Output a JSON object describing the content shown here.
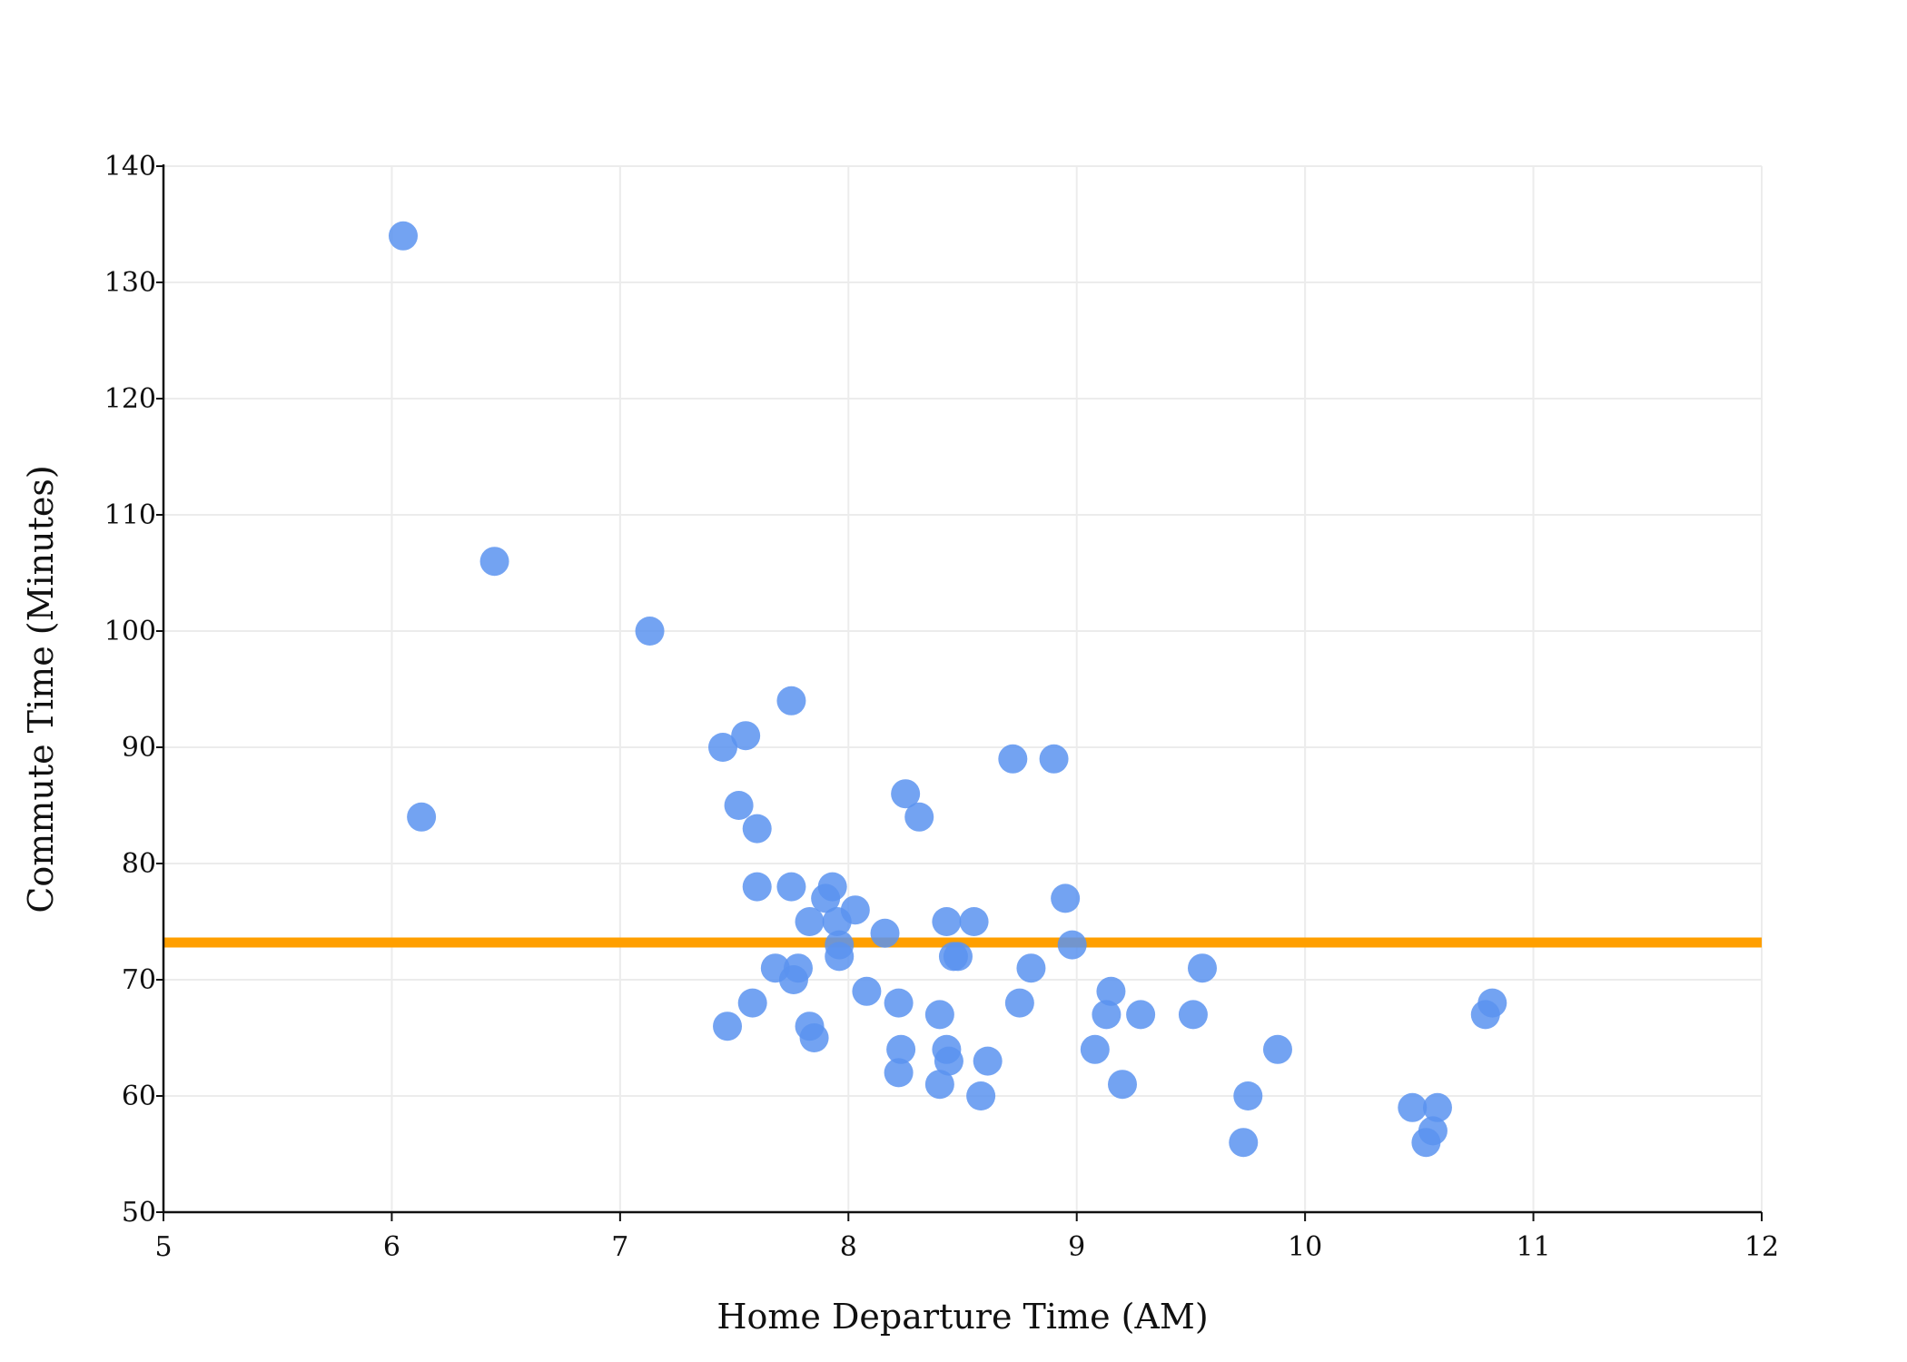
{
  "chart_data": {
    "type": "scatter",
    "title": "",
    "xlabel": "Home Departure Time (AM)",
    "ylabel": "Commute Time (Minutes)",
    "xlim": [
      5,
      12
    ],
    "ylim": [
      50,
      140
    ],
    "xticks": [
      "5",
      "6",
      "7",
      "8",
      "9",
      "10",
      "11",
      "12"
    ],
    "yticks": [
      "50",
      "60",
      "70",
      "80",
      "90",
      "100",
      "110",
      "120",
      "130",
      "140"
    ],
    "grid": true,
    "point_color": "#5b93f0",
    "reference_line": {
      "orientation": "horizontal",
      "y": 73.2,
      "color": "#ff9f00"
    },
    "points": [
      {
        "x": 6.05,
        "y": 134
      },
      {
        "x": 6.13,
        "y": 84
      },
      {
        "x": 6.45,
        "y": 106
      },
      {
        "x": 7.13,
        "y": 100
      },
      {
        "x": 7.45,
        "y": 90
      },
      {
        "x": 7.47,
        "y": 66
      },
      {
        "x": 7.52,
        "y": 85
      },
      {
        "x": 7.55,
        "y": 91
      },
      {
        "x": 7.58,
        "y": 68
      },
      {
        "x": 7.6,
        "y": 78
      },
      {
        "x": 7.6,
        "y": 83
      },
      {
        "x": 7.68,
        "y": 71
      },
      {
        "x": 7.75,
        "y": 94
      },
      {
        "x": 7.75,
        "y": 78
      },
      {
        "x": 7.76,
        "y": 70
      },
      {
        "x": 7.78,
        "y": 71
      },
      {
        "x": 7.83,
        "y": 66
      },
      {
        "x": 7.83,
        "y": 75
      },
      {
        "x": 7.85,
        "y": 65
      },
      {
        "x": 7.9,
        "y": 77
      },
      {
        "x": 7.93,
        "y": 78
      },
      {
        "x": 7.95,
        "y": 75
      },
      {
        "x": 7.96,
        "y": 73
      },
      {
        "x": 7.96,
        "y": 72
      },
      {
        "x": 8.03,
        "y": 76
      },
      {
        "x": 8.08,
        "y": 69
      },
      {
        "x": 8.16,
        "y": 74
      },
      {
        "x": 8.22,
        "y": 68
      },
      {
        "x": 8.22,
        "y": 62
      },
      {
        "x": 8.23,
        "y": 64
      },
      {
        "x": 8.25,
        "y": 86
      },
      {
        "x": 8.31,
        "y": 84
      },
      {
        "x": 8.4,
        "y": 67
      },
      {
        "x": 8.4,
        "y": 61
      },
      {
        "x": 8.43,
        "y": 75
      },
      {
        "x": 8.43,
        "y": 64
      },
      {
        "x": 8.44,
        "y": 63
      },
      {
        "x": 8.46,
        "y": 72
      },
      {
        "x": 8.48,
        "y": 72
      },
      {
        "x": 8.55,
        "y": 75
      },
      {
        "x": 8.58,
        "y": 60
      },
      {
        "x": 8.61,
        "y": 63
      },
      {
        "x": 8.72,
        "y": 89
      },
      {
        "x": 8.75,
        "y": 68
      },
      {
        "x": 8.8,
        "y": 71
      },
      {
        "x": 8.9,
        "y": 89
      },
      {
        "x": 8.95,
        "y": 77
      },
      {
        "x": 8.98,
        "y": 73
      },
      {
        "x": 9.08,
        "y": 64
      },
      {
        "x": 9.13,
        "y": 67
      },
      {
        "x": 9.15,
        "y": 69
      },
      {
        "x": 9.2,
        "y": 61
      },
      {
        "x": 9.28,
        "y": 67
      },
      {
        "x": 9.51,
        "y": 67
      },
      {
        "x": 9.55,
        "y": 71
      },
      {
        "x": 9.73,
        "y": 56
      },
      {
        "x": 9.75,
        "y": 60
      },
      {
        "x": 9.88,
        "y": 64
      },
      {
        "x": 10.47,
        "y": 59
      },
      {
        "x": 10.53,
        "y": 56
      },
      {
        "x": 10.56,
        "y": 57
      },
      {
        "x": 10.58,
        "y": 59
      },
      {
        "x": 10.79,
        "y": 67
      },
      {
        "x": 10.82,
        "y": 68
      }
    ]
  }
}
